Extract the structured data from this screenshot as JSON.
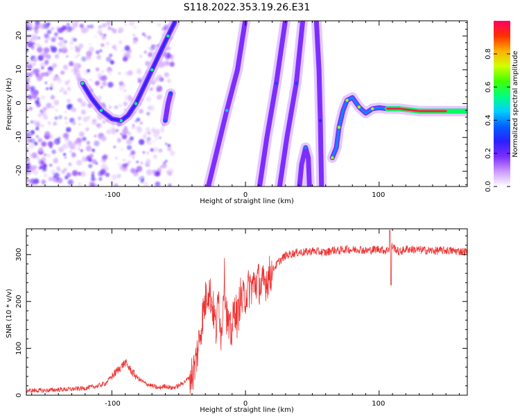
{
  "figure": {
    "title": "S118.2022.353.19.26.E31"
  },
  "chart_data": [
    {
      "type": "heatmap",
      "xlabel": "Height of straight line (km)",
      "ylabel": "Frequency (Hz)",
      "xlim": [
        -164,
        166
      ],
      "ylim": [
        -24.5,
        24.5
      ],
      "xticks": [
        -100,
        0,
        100
      ],
      "xtick_labels": [
        "-100",
        "0",
        "100"
      ],
      "yticks": [
        20,
        10,
        0,
        -10,
        -20
      ],
      "ytick_labels": [
        "20",
        "10",
        "0",
        "-10",
        "-20"
      ],
      "colorbar": {
        "label": "Normalized spectral amplitude",
        "range": [
          0,
          1
        ],
        "ticks": [
          0.0,
          0.2,
          0.4,
          0.6,
          0.8
        ],
        "tick_labels": [
          "0.0",
          "0.2",
          "0.4",
          "0.6",
          "0.8"
        ],
        "colormap": [
          "#ffffff",
          "#cc99ff",
          "#7b2cff",
          "#2b20ff",
          "#0060ff",
          "#00d0ff",
          "#00ff80",
          "#40ff00",
          "#d0ff00",
          "#ffb000",
          "#ff3000",
          "#ff0060"
        ]
      },
      "traces": [
        {
          "name": "",
          "amplitude": 0.35,
          "points": [
            [
              -122,
              6
            ],
            [
              -115,
              1.5
            ],
            [
              -108,
              -2
            ],
            [
              -100,
              -4.5
            ],
            [
              -93,
              -5
            ],
            [
              -88,
              -3.5
            ],
            [
              -82,
              0
            ],
            [
              -76,
              5
            ],
            [
              -70,
              10
            ],
            [
              -64,
              15
            ],
            [
              -58,
              20
            ],
            [
              -53,
              24
            ]
          ]
        },
        {
          "name": "",
          "amplitude": 0.15,
          "points": [
            [
              -60,
              -5
            ],
            [
              -58,
              0
            ],
            [
              -56,
              3
            ]
          ]
        },
        {
          "name": "",
          "amplitude": 0.25,
          "points": [
            [
              -30,
              -28
            ],
            [
              -22,
              -15
            ],
            [
              -14,
              -2
            ],
            [
              -6,
              10
            ],
            [
              0,
              25
            ]
          ]
        },
        {
          "name": "",
          "amplitude": 0.12,
          "points": [
            [
              10,
              -26
            ],
            [
              16,
              -10
            ],
            [
              23,
              6
            ],
            [
              30,
              25
            ]
          ]
        },
        {
          "name": "",
          "amplitude": 0.12,
          "points": [
            [
              25,
              -26
            ],
            [
              31,
              -10
            ],
            [
              38,
              6
            ],
            [
              43,
              25
            ]
          ]
        },
        {
          "name": "",
          "amplitude": 0.2,
          "points": [
            [
              40,
              -26
            ],
            [
              42,
              -18
            ],
            [
              45,
              -13
            ],
            [
              47,
              -16
            ],
            [
              48,
              -26
            ]
          ]
        },
        {
          "name": "",
          "amplitude": 0.08,
          "points": [
            [
              53,
              25
            ],
            [
              55,
              10
            ],
            [
              56,
              -5
            ],
            [
              57,
              -26
            ]
          ]
        },
        {
          "name": "",
          "amplitude": 0.5,
          "points": [
            [
              65,
              -16
            ],
            [
              68,
              -13
            ],
            [
              70,
              -7
            ],
            [
              73,
              -2
            ],
            [
              76,
              1
            ],
            [
              80,
              1.8
            ],
            [
              85,
              -1
            ],
            [
              90,
              -2.8
            ],
            [
              95,
              -1.5
            ],
            [
              100,
              -1.2
            ],
            [
              106,
              -1.5
            ],
            [
              115,
              -1.5
            ],
            [
              130,
              -2.2
            ],
            [
              150,
              -2.2
            ],
            [
              166,
              -2.2
            ]
          ]
        }
      ],
      "series": []
    },
    {
      "type": "line",
      "xlabel": "Height of straight line (km)",
      "ylabel": "SNR (10 * v/v)",
      "xlim": [
        -164,
        166
      ],
      "ylim": [
        0,
        355
      ],
      "xticks": [
        -100,
        0,
        100
      ],
      "xtick_labels": [
        "-100",
        "0",
        "100"
      ],
      "yticks": [
        0,
        100,
        200,
        300
      ],
      "ytick_labels": [
        "0",
        "100",
        "200",
        "300"
      ],
      "color": "#ee3333",
      "series": [
        {
          "x": [
            -164,
            -150,
            -140,
            -130,
            -120,
            -110,
            -105,
            -100,
            -95,
            -90,
            -85,
            -80,
            -75,
            -70,
            -65,
            -60,
            -55,
            -50,
            -45,
            -40,
            -38,
            -35,
            -32,
            -28,
            -25,
            -22,
            -20,
            -18,
            -16,
            -14,
            -12,
            -10,
            -8,
            -6,
            -4,
            -2,
            0,
            3,
            6,
            9,
            12,
            15,
            18,
            21,
            25,
            30,
            35,
            40,
            45,
            50,
            55,
            60,
            65,
            70,
            75,
            80,
            85,
            90,
            95,
            100,
            105,
            110,
            115,
            120,
            130,
            140,
            150,
            160,
            166
          ],
          "y": [
            10,
            10,
            12,
            13,
            15,
            20,
            25,
            40,
            55,
            70,
            50,
            35,
            25,
            20,
            15,
            20,
            15,
            20,
            30,
            45,
            60,
            110,
            170,
            230,
            200,
            140,
            210,
            120,
            260,
            170,
            130,
            140,
            190,
            160,
            210,
            200,
            215,
            230,
            235,
            245,
            230,
            245,
            255,
            270,
            285,
            298,
            302,
            305,
            305,
            308,
            306,
            304,
            310,
            308,
            312,
            310,
            312,
            308,
            310,
            312,
            308,
            318,
            305,
            312,
            310,
            308,
            309,
            307,
            306
          ]
        }
      ]
    }
  ]
}
